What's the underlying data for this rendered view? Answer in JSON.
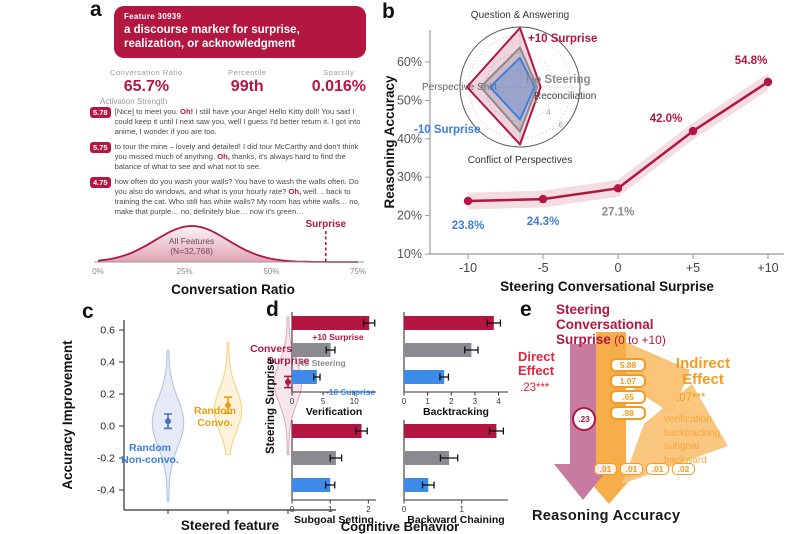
{
  "colors": {
    "crimson": "#b31641",
    "blue": "#3e7ede",
    "gray": "#8a8a90",
    "gold": "#e8a013",
    "orange": "#f59b1e",
    "mauve": "#c77ba1"
  },
  "panel_a": {
    "label": "a",
    "feature_id": "Feature 30939",
    "title": "a discourse marker for surprise, realization, or acknowledgment",
    "stats": [
      {
        "label": "Conversation Ratio",
        "value": "65.7%"
      },
      {
        "label": "Percentile",
        "value": "99th"
      },
      {
        "label": "Sparsity",
        "value": "0.016%"
      }
    ],
    "activation_label": "Activation Strength",
    "examples": [
      {
        "score": "5.78",
        "pre": "[Nice] to meet you. ",
        "hl": "Oh!",
        "post": " I still have your Angel Hello Kitty doll! You said I could keep it until I next saw you, well I guess I'd better return it. I got into anime, I wonder if you are too."
      },
      {
        "score": "5.75",
        "pre": "to tour the mine – lovely and detailed! I did tour McCarthy and don't think you missed much of anything. ",
        "hl": "Oh,",
        "post": " thanks, it's always hard to find the balance of what to see and what not to see."
      },
      {
        "score": "4.75",
        "pre": "how often do you wash your walls? You have to wash the walls often. Do you also do windows, and what is your hourly rate? ",
        "hl": "Oh,",
        "post": " well… back to training the cat. Who still has white walls? My room has white walls… no, make that purple… no, definitely blue… now it's green…"
      }
    ],
    "distribution_xlabel": "Conversation Ratio"
  },
  "panel_b": {
    "label": "b",
    "x_tick_labels": [
      "-10",
      "-5",
      "0",
      "+5",
      "+10"
    ],
    "point_label_colors": [
      "#3e7ede",
      "#3e7ede",
      "#8a8a90",
      "#b31641",
      "#b31641"
    ]
  },
  "panel_c": {
    "label": "c",
    "violin_labels": [
      {
        "lines": [
          "Random",
          "Non-convo."
        ],
        "color": "#3e7ede"
      },
      {
        "lines": [
          "Random",
          "Convo."
        ],
        "color": "#e8a013"
      },
      {
        "lines": [
          "Conversational",
          "Surprise"
        ],
        "color": "#b31641"
      }
    ]
  },
  "panel_d": {
    "label": "d"
  },
  "panel_e": {
    "label": "e",
    "title_line1": "Steering",
    "title_line2": "Conversational",
    "title_line3_bold": "Surprise",
    "title_line3_rest": " (0 to +10)",
    "direct_line1": "Direct",
    "direct_line2": "Effect",
    "direct_value": ".23***",
    "direct_badge": ".23",
    "indirect_line1": "Indirect",
    "indirect_line2": "Effect",
    "indirect_value": ".07***",
    "mediator_values": [
      "5.88",
      "1.07",
      ".65",
      ".88"
    ],
    "mediators": [
      "verification",
      "backtracking",
      "subgoal",
      "backward"
    ],
    "mediator_effects": [
      ".01",
      ".01",
      ".01",
      ".02"
    ],
    "outcome": "Reasoning Accuracy"
  },
  "chart_data": [
    {
      "type": "area",
      "panel": "a",
      "curve_label_line1": "All Features",
      "curve_label_line2": "(N=32,768)",
      "xlabel": "Conversation Ratio",
      "x_ticks": [
        "0%",
        "25%",
        "50%",
        "75%"
      ],
      "xlim": [
        0,
        75
      ],
      "peak_x": 27,
      "sd": 10.5,
      "marker": {
        "x": 65.7,
        "label": "Surprise"
      },
      "n_features": 32768
    },
    {
      "type": "line",
      "panel": "b",
      "xlabel": "Steering Conversational Surprise",
      "ylabel": "Reasoning Accuracy",
      "x": [
        -10,
        -5,
        0,
        5,
        10
      ],
      "y": [
        23.8,
        24.3,
        27.1,
        42.0,
        54.8
      ],
      "ylim": [
        10,
        65
      ],
      "y_ticks_percent": [
        10,
        20,
        30,
        40,
        50,
        60
      ],
      "band": 2.2
    },
    {
      "type": "radar",
      "panel": "b-inset",
      "axes": [
        "Question & Answering",
        "Reconciliation",
        "Conflict of Perspectives",
        "Perspective Shift"
      ],
      "r_ticks": [
        2,
        4,
        6
      ],
      "r_max": 7,
      "series": [
        {
          "name": "+10 Surprise",
          "values": [
            6.9,
            2.4,
            6.7,
            6.2
          ]
        },
        {
          "name": "No Steering",
          "values": [
            4.6,
            2.0,
            5.2,
            4.6
          ]
        },
        {
          "name": "-10 Surprise",
          "values": [
            3.4,
            1.7,
            3.8,
            3.5
          ]
        }
      ]
    },
    {
      "type": "violin",
      "panel": "c",
      "xlabel": "Steered feature",
      "ylabel": "Accuracy Improvement",
      "ylim": [
        -0.45,
        0.7
      ],
      "y_ticks": [
        0.6,
        0.4,
        0.2,
        0.0,
        -0.2,
        -0.4
      ],
      "groups": [
        {
          "name": "Random Non-convo.",
          "mean": 0.03,
          "err": 0.045,
          "range": [
            -0.47,
            0.47
          ],
          "mode": 0.02,
          "spread": 0.15,
          "max_halfwidth": 15
        },
        {
          "name": "Random Convo.",
          "mean": 0.13,
          "err": 0.05,
          "range": [
            -0.18,
            0.52
          ],
          "mode": 0.1,
          "spread": 0.13,
          "max_halfwidth": 13
        },
        {
          "name": "Conversational Surprise",
          "mean": 0.275,
          "err": 0.035,
          "range": [
            -0.18,
            0.68
          ],
          "mode": 0.27,
          "spread": 0.13,
          "max_halfwidth": 13
        }
      ]
    },
    {
      "type": "bar",
      "panel": "d",
      "title": "Cognitive Behavior",
      "ylabel": "Steering Surprise",
      "categories": [
        "+10 Surprise",
        "No Steering",
        "-10 Surprise"
      ],
      "subplots": [
        {
          "name": "Verification",
          "values": [
            12.4,
            6.2,
            4.0
          ],
          "errors": [
            0.9,
            0.7,
            0.5
          ],
          "xlim": [
            0,
            13.5
          ],
          "ticks": [
            0,
            5,
            10
          ]
        },
        {
          "name": "Backtracking",
          "values": [
            3.8,
            2.85,
            1.7
          ],
          "errors": [
            0.28,
            0.28,
            0.18
          ],
          "xlim": [
            0,
            4.4
          ],
          "ticks": [
            0,
            1,
            2,
            3,
            4
          ]
        },
        {
          "name": "Subgoal Setting",
          "values": [
            1.82,
            1.15,
            1.0
          ],
          "errors": [
            0.15,
            0.15,
            0.12
          ],
          "xlim": [
            0,
            2.2
          ],
          "ticks": [
            0,
            1,
            2
          ]
        },
        {
          "name": "Backward Chaining",
          "values": [
            1.6,
            0.78,
            0.42
          ],
          "errors": [
            0.12,
            0.15,
            0.1
          ],
          "xlim": [
            0,
            1.8
          ],
          "ticks": [
            0,
            1
          ]
        }
      ]
    },
    {
      "type": "other",
      "panel": "e",
      "name": "mediation-path-diagram",
      "exposure": "Steering Conversational Surprise (0 to +10)",
      "direct_effect": ".23***",
      "indirect_effect": ".07***",
      "mediators": [
        "verification",
        "backtracking",
        "subgoal",
        "backward"
      ],
      "a_paths": [
        "5.88",
        "1.07",
        ".65",
        ".88"
      ],
      "b_paths": [
        ".01",
        ".01",
        ".01",
        ".02"
      ],
      "outcome": "Reasoning Accuracy"
    }
  ]
}
